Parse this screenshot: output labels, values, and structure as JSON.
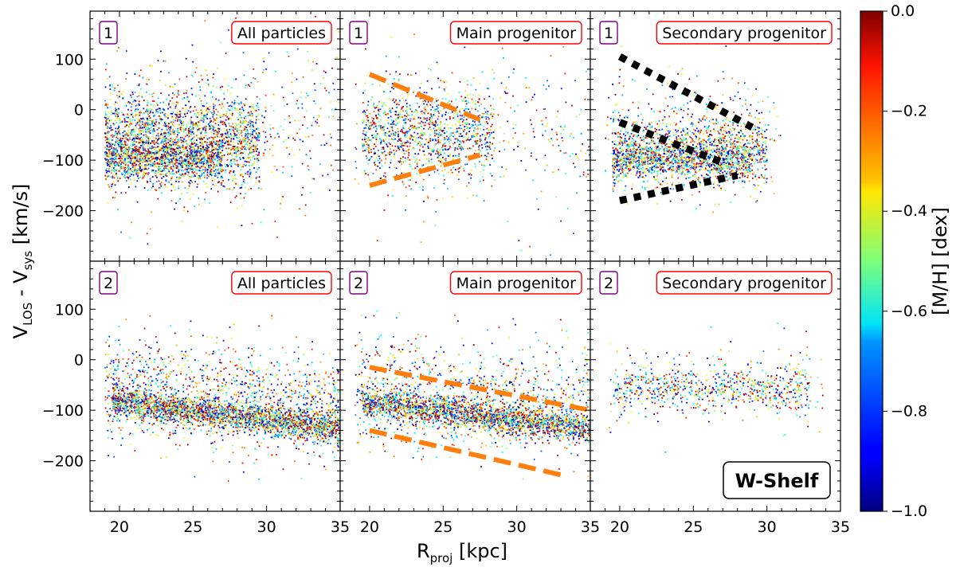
{
  "chart_data": {
    "type": "scatter",
    "figure_label": "W-Shelf",
    "x_label_main": "R",
    "x_label_sub": "proj",
    "x_label_unit": " [kpc]",
    "y_label_main": "V",
    "y_label_sub1": "LOS",
    "y_label_mid": " - V",
    "y_label_sub2": "sys",
    "y_label_unit": " [km/s]",
    "xlim": [
      18,
      35
    ],
    "ylim": [
      -300,
      195
    ],
    "xticks": [
      20,
      25,
      30,
      35
    ],
    "yticks_row1": [
      -200,
      -100,
      0,
      100
    ],
    "yticks_row2": [
      -200,
      -100,
      0,
      100
    ],
    "colorbar": {
      "label": "[M/H] [dex]",
      "range": [
        -1.0,
        0.0
      ],
      "ticks": [
        "0.0",
        "−0.2",
        "−0.4",
        "−0.6",
        "−0.8",
        "−1.0"
      ],
      "tick_values": [
        0.0,
        -0.2,
        -0.4,
        -0.6,
        -0.8,
        -1.0
      ],
      "colormap": "jet"
    },
    "panels": [
      {
        "row": 1,
        "col": 1,
        "row_badge": "1",
        "label": "All particles",
        "clusters": [
          {
            "x_range": [
              19,
              29.5
            ],
            "v_center_at_20": -60,
            "slope": 0,
            "v_spread": 90,
            "n": 2200
          },
          {
            "x_range": [
              19,
              27
            ],
            "v_center_at_20": -100,
            "slope": 0,
            "v_spread": 40,
            "n": 900
          },
          {
            "x_range": [
              19,
              35
            ],
            "v_center_at_20": -40,
            "slope": 0,
            "v_spread": 170,
            "n": 500
          }
        ],
        "guide_lines": []
      },
      {
        "row": 1,
        "col": 2,
        "row_badge": "1",
        "label": "Main progenitor",
        "clusters": [
          {
            "x_range": [
              19.5,
              28.5
            ],
            "v_center_at_20": -45,
            "slope": 0,
            "v_spread": 85,
            "n": 1100
          },
          {
            "x_range": [
              19,
              35
            ],
            "v_center_at_20": -40,
            "slope": 0,
            "v_spread": 170,
            "n": 350
          }
        ],
        "guide_lines": [
          {
            "style": "dashed",
            "color": "#ff7f0e",
            "points": [
              [
                20,
                70
              ],
              [
                27.5,
                -20
              ]
            ]
          },
          {
            "style": "dashed",
            "color": "#ff7f0e",
            "points": [
              [
                20,
                -150
              ],
              [
                27.5,
                -90
              ]
            ]
          }
        ]
      },
      {
        "row": 1,
        "col": 3,
        "row_badge": "1",
        "label": "Secondary progenitor",
        "clusters": [
          {
            "x_range": [
              19.5,
              30
            ],
            "v_center_at_20": -80,
            "slope": 0,
            "v_spread": 70,
            "n": 1500
          },
          {
            "x_range": [
              19.5,
              29
            ],
            "v_center_at_20": -100,
            "slope": 0,
            "v_spread": 35,
            "n": 700
          },
          {
            "x_range": [
              19,
              31
            ],
            "v_center_at_20": -40,
            "slope": 0,
            "v_spread": 140,
            "n": 200
          }
        ],
        "guide_lines": [
          {
            "style": "dotted",
            "color": "#000000",
            "points": [
              [
                20,
                105
              ],
              [
                29,
                -35
              ]
            ]
          },
          {
            "style": "dotted",
            "color": "#000000",
            "points": [
              [
                20,
                -25
              ],
              [
                27,
                -105
              ]
            ]
          },
          {
            "style": "dotted",
            "color": "#000000",
            "points": [
              [
                20,
                -180
              ],
              [
                28,
                -130
              ]
            ]
          }
        ]
      },
      {
        "row": 2,
        "col": 1,
        "row_badge": "2",
        "label": "All particles",
        "clusters": [
          {
            "x_range": [
              19.5,
              35
            ],
            "v_center_at_20": -85,
            "slope": -3.5,
            "v_spread": 30,
            "n": 2400
          },
          {
            "x_range": [
              19,
              35
            ],
            "v_center_at_20": -60,
            "slope": -2,
            "v_spread": 110,
            "n": 1300
          }
        ],
        "guide_lines": []
      },
      {
        "row": 2,
        "col": 2,
        "row_badge": "2",
        "label": "Main progenitor",
        "clusters": [
          {
            "x_range": [
              19.5,
              35
            ],
            "v_center_at_20": -85,
            "slope": -3.5,
            "v_spread": 30,
            "n": 2200
          },
          {
            "x_range": [
              19,
              35
            ],
            "v_center_at_20": -60,
            "slope": -2,
            "v_spread": 110,
            "n": 1100
          }
        ],
        "guide_lines": [
          {
            "style": "dashed",
            "color": "#ff7f0e",
            "points": [
              [
                20,
                -15
              ],
              [
                35,
                -100
              ]
            ]
          },
          {
            "style": "dashed",
            "color": "#ff7f0e",
            "points": [
              [
                20,
                -140
              ],
              [
                33,
                -228
              ]
            ]
          }
        ]
      },
      {
        "row": 2,
        "col": 3,
        "row_badge": "2",
        "label": "Secondary progenitor",
        "clusters": [
          {
            "x_range": [
              19.5,
              33
            ],
            "v_center_at_20": -55,
            "slope": 0,
            "v_spread": 45,
            "n": 750
          },
          {
            "x_range": [
              19,
              34
            ],
            "v_center_at_20": -60,
            "slope": 0,
            "v_spread": 110,
            "n": 120
          }
        ],
        "guide_lines": []
      }
    ]
  }
}
